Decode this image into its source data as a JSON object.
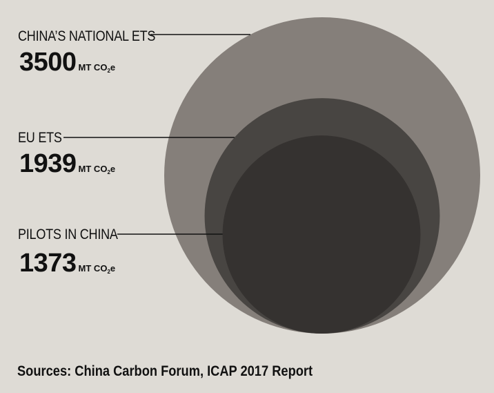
{
  "chart_data": {
    "type": "bubble",
    "series": [
      {
        "name": "CHINA’S NATIONAL ETS",
        "value": 3500,
        "value_text": "3500",
        "unit_prefix": "MT CO",
        "unit_sub": "2",
        "unit_suffix": "e",
        "color": "#857f7a"
      },
      {
        "name": "EU ETS",
        "value": 1939,
        "value_text": "1939",
        "unit_prefix": "MT CO",
        "unit_sub": "2",
        "unit_suffix": "e",
        "color": "#484542"
      },
      {
        "name": "PILOTS IN CHINA",
        "value": 1373,
        "value_text": "1373",
        "unit_prefix": "MT CO",
        "unit_sub": "2",
        "unit_suffix": "e",
        "color": "#353230"
      }
    ]
  },
  "source": "Sources: China Carbon Forum, ICAP 2017 Report"
}
